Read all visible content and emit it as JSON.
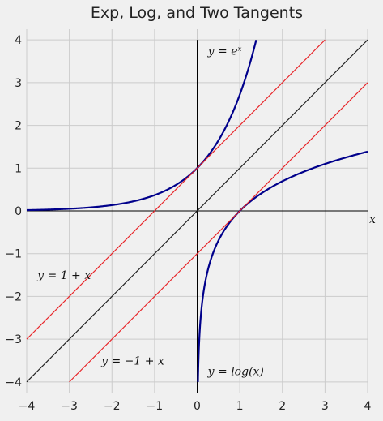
{
  "chart_data": {
    "type": "line",
    "title": "Exp, Log, and Two Tangents",
    "xlabel": "x",
    "ylabel": "",
    "xlim": [
      -4,
      4
    ],
    "ylim": [
      -4.25,
      4.25
    ],
    "xticks": [
      -4,
      -3,
      -2,
      -1,
      0,
      1,
      2,
      3,
      4
    ],
    "yticks": [
      -4,
      -3,
      -2,
      -1,
      0,
      1,
      2,
      3,
      4
    ],
    "xtick_labels": [
      "−4",
      "−3",
      "−2",
      "−1",
      "0",
      "1",
      "2",
      "3",
      "4"
    ],
    "ytick_labels": [
      "−4",
      "−3",
      "−2",
      "−1",
      "0",
      "1",
      "2",
      "3",
      "4"
    ],
    "grid": true,
    "colors": {
      "curve": "#00008b",
      "tangent": "#e8262a",
      "identity": "#222222",
      "axis": "#000000"
    },
    "series": [
      {
        "function": "exp",
        "color": "#00008b",
        "x_range": [
          -4,
          1.386
        ]
      },
      {
        "function": "log",
        "color": "#00008b",
        "x_range": [
          0.0183,
          4
        ]
      },
      {
        "function": "1+x",
        "color": "#e8262a",
        "x_range": [
          -4,
          3
        ]
      },
      {
        "function": "x-1",
        "color": "#e8262a",
        "x_range": [
          -3,
          4
        ]
      },
      {
        "function": "x",
        "color": "#222222",
        "x_range": [
          -4,
          4
        ]
      }
    ],
    "annotations": [
      {
        "text": "y = eˣ",
        "x": 0.25,
        "y": 3.75
      },
      {
        "text": "y = 1 + x",
        "x": -3.75,
        "y": -1.5
      },
      {
        "text": "y = −1 + x",
        "x": -2.25,
        "y": -3.5
      },
      {
        "text": "y = log(x)",
        "x": 0.25,
        "y": -3.75
      }
    ]
  }
}
